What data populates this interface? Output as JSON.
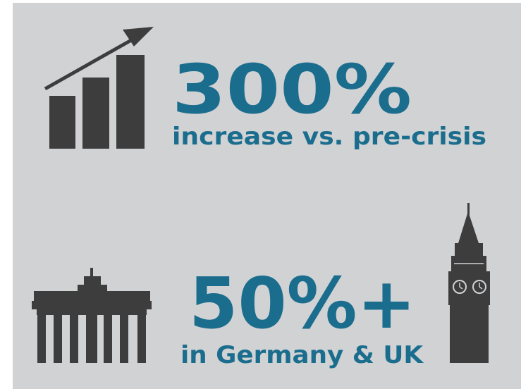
{
  "stats": [
    {
      "value": "300%",
      "caption": "increase vs. pre-crisis"
    },
    {
      "value": "50%+",
      "caption": "in Germany & UK"
    }
  ]
}
